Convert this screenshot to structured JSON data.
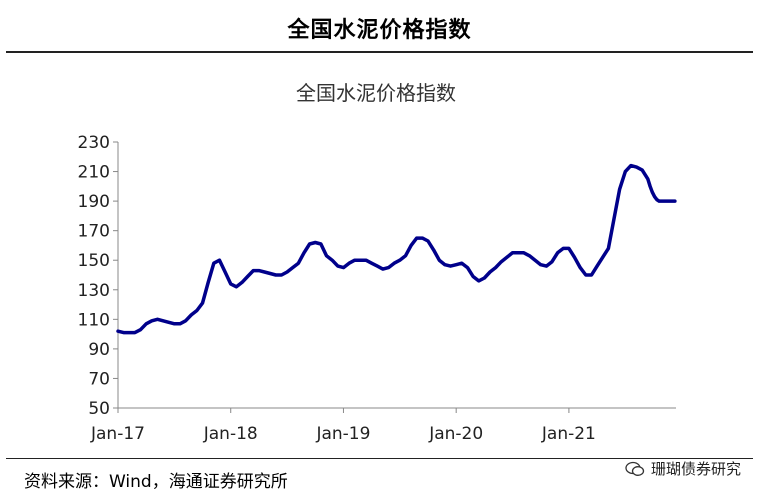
{
  "header": {
    "title": "全国水泥价格指数"
  },
  "footer": {
    "source": "资料来源：Wind，海通证券研究所",
    "watermark": "珊瑚债券研究"
  },
  "chart_data": {
    "type": "line",
    "title": "全国水泥价格指数",
    "xlabel": "",
    "ylabel": "",
    "ylim": [
      50,
      230
    ],
    "yticks": [
      50,
      70,
      90,
      110,
      130,
      150,
      170,
      190,
      210,
      230
    ],
    "xtick_labels": [
      "Jan-17",
      "Jan-18",
      "Jan-19",
      "Jan-20",
      "Jan-21"
    ],
    "xlim": [
      2017.0,
      2021.95
    ],
    "grid": false,
    "legend": "none",
    "line_color": "#00008B",
    "series": [
      {
        "x": [
          2017.0,
          2017.05,
          2017.1,
          2017.15,
          2017.2,
          2017.25,
          2017.3,
          2017.35,
          2017.4,
          2017.45,
          2017.5,
          2017.55,
          2017.6,
          2017.65,
          2017.7,
          2017.75,
          2017.8,
          2017.85,
          2017.9,
          2017.95,
          2018.0,
          2018.05,
          2018.1,
          2018.15,
          2018.2,
          2018.25,
          2018.3,
          2018.35,
          2018.4,
          2018.45,
          2018.5,
          2018.55,
          2018.6,
          2018.65,
          2018.7,
          2018.75,
          2018.8,
          2018.85,
          2018.9,
          2018.95,
          2019.0,
          2019.05,
          2019.1,
          2019.15,
          2019.2,
          2019.25,
          2019.3,
          2019.35,
          2019.4,
          2019.45,
          2019.5,
          2019.55,
          2019.6,
          2019.65,
          2019.7,
          2019.75,
          2019.8,
          2019.85,
          2019.9,
          2019.95,
          2020.0,
          2020.05,
          2020.1,
          2020.15,
          2020.2,
          2020.25,
          2020.3,
          2020.35,
          2020.4,
          2020.45,
          2020.5,
          2020.55,
          2020.6,
          2020.65,
          2020.7,
          2020.75,
          2020.8,
          2020.85,
          2020.9,
          2020.95,
          2021.0,
          2021.05,
          2021.1,
          2021.15,
          2021.2,
          2021.25,
          2021.3,
          2021.35,
          2021.4,
          2021.45,
          2021.5,
          2021.55,
          2021.6,
          2021.65,
          2021.7,
          2021.72,
          2021.74,
          2021.76,
          2021.78,
          2021.8,
          2021.82,
          2021.85,
          2021.88,
          2021.91,
          2021.94
        ],
        "values": [
          102,
          101,
          101,
          101,
          103,
          107,
          109,
          110,
          109,
          108,
          107,
          107,
          109,
          113,
          116,
          121,
          135,
          148,
          150,
          142,
          134,
          132,
          135,
          139,
          143,
          143,
          142,
          141,
          140,
          140,
          142,
          145,
          148,
          155,
          161,
          162,
          161,
          153,
          150,
          146,
          145,
          148,
          150,
          150,
          150,
          148,
          146,
          144,
          145,
          148,
          150,
          153,
          160,
          165,
          165,
          163,
          157,
          150,
          147,
          146,
          147,
          148,
          145,
          139,
          136,
          138,
          142,
          145,
          149,
          152,
          155,
          155,
          155,
          153,
          150,
          147,
          146,
          149,
          155,
          158,
          158,
          152,
          145,
          140,
          140,
          146,
          152,
          158,
          178,
          198,
          210,
          214,
          213,
          211,
          205,
          200,
          196,
          193,
          191,
          190,
          190,
          190,
          190,
          190,
          190
        ]
      }
    ]
  }
}
